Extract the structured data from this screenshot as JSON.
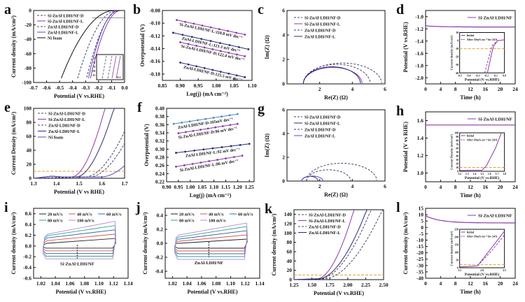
{
  "colors": {
    "purple": "#8b3aa8",
    "navy": "#2a2a7a",
    "slate": "#444466",
    "violet": "#5b46c4",
    "black": "#111111",
    "orange_ref": "#e0a030",
    "cv": [
      "#222222",
      "#d9534f",
      "#2a6fb0",
      "#3aa08a",
      "#b48cd8"
    ]
  },
  "chart_data": [
    {
      "id": "a",
      "panel_label": "a",
      "type": "line",
      "xlabel": "Potential (V vs.RHE)",
      "ylabel": "Current density (mA/cm²)",
      "xlim": [
        -0.7,
        0.0
      ],
      "ylim": [
        -100,
        0
      ],
      "xticks": [
        "-0.7",
        "-0.6",
        "-0.5",
        "-0.4",
        "-0.3",
        "-0.2",
        "-0.1",
        "0.0"
      ],
      "yticks": [
        "-100",
        "-80",
        "-60",
        "-40",
        "-20",
        "0"
      ],
      "legend_position": "top-left",
      "series": [
        {
          "name": "Si-ZnAl-LDH/NF-D",
          "style": "dash",
          "color": "slate",
          "onset": -0.04,
          "x100": -0.3
        },
        {
          "name": "Si-ZnAl-LDH/NF-L",
          "style": "solid",
          "color": "purple",
          "onset": -0.03,
          "x100": -0.27
        },
        {
          "name": "ZnAl-LDH/NF-D",
          "style": "dash",
          "color": "slate",
          "onset": -0.06,
          "x100": -0.37
        },
        {
          "name": "ZnAl-LDH/NF-L",
          "style": "solid",
          "color": "violet",
          "onset": -0.05,
          "x100": -0.285
        },
        {
          "name": "Ni foam",
          "style": "solid",
          "color": "black",
          "onset": -0.08,
          "x100": -0.5
        }
      ],
      "inset": {
        "yticks": [
          "-7",
          "-8",
          "-9",
          "-10",
          "-11"
        ],
        "xtick": "-0.1"
      }
    },
    {
      "id": "b",
      "panel_label": "b",
      "type": "line",
      "xlabel": "Log(j) (mA cm⁻²)",
      "ylabel": "Overpotential (V)",
      "xlim": [
        0.85,
        1.1
      ],
      "ylim": [
        -0.19,
        -0.08
      ],
      "xticks": [
        "0.85",
        "0.90",
        "0.95",
        "1.00",
        "1.05",
        "1.10"
      ],
      "yticks": [
        "-0.18",
        "-0.16",
        "-0.14",
        "-0.12",
        "-0.10",
        "-0.08"
      ],
      "series": [
        {
          "name": "Si-ZnAl-LDH/NF-L:118.8 mV dec⁻¹",
          "color": "purple",
          "x": [
            0.89,
            1.08
          ],
          "y": [
            -0.095,
            -0.118
          ]
        },
        {
          "name": "ZnAl-LDH/NF-L:121.3 mV dec⁻¹",
          "color": "navy",
          "x": [
            0.88,
            1.09
          ],
          "y": [
            -0.115,
            -0.141
          ]
        },
        {
          "name": "Si-ZnAl-LDH/NF-D:122.4 mV dec⁻¹",
          "color": "purple",
          "x": [
            0.9,
            1.08
          ],
          "y": [
            -0.13,
            -0.152
          ]
        },
        {
          "name": "ZnAl-LDH/NF-D:125.5 mV dec⁻¹",
          "color": "navy",
          "x": [
            0.9,
            1.08
          ],
          "y": [
            -0.162,
            -0.185
          ]
        }
      ]
    },
    {
      "id": "c",
      "panel_label": "c",
      "type": "line",
      "xlabel": "Re(Z) (Ω)",
      "ylabel": "Im(Z) (Ω)",
      "xlim": [
        0,
        6
      ],
      "ylim": [
        0,
        6
      ],
      "xticks": [
        "2",
        "4",
        "6"
      ],
      "yticks": [
        "0",
        "2",
        "4",
        "6"
      ],
      "legend_position": "top-left",
      "series": [
        {
          "name": "Si-ZnAl-LDH/NF-D",
          "style": "dash",
          "color": "slate",
          "r0": 1.0,
          "r1": 5.1,
          "peak": 1.6
        },
        {
          "name": "Si-ZnAl-LDH/NF-L",
          "style": "solid",
          "color": "purple",
          "r0": 1.0,
          "r1": 4.6,
          "peak": 1.35
        },
        {
          "name": "ZnAl-LDH/NF-D",
          "style": "dash",
          "color": "slate",
          "r0": 1.0,
          "r1": 5.8,
          "peak": 1.7
        },
        {
          "name": "ZnAl-LDH/NF-L",
          "style": "solid",
          "color": "navy",
          "r0": 1.0,
          "r1": 4.5,
          "peak": 1.4
        }
      ]
    },
    {
      "id": "d",
      "panel_label": "d",
      "type": "line",
      "xlabel": "Time (h)",
      "ylabel": "Potential (V vs.RHE)",
      "xlim": [
        0,
        24
      ],
      "ylim": [
        -2.1,
        -0.9
      ],
      "xticks": [
        "0",
        "4",
        "8",
        "12",
        "16",
        "20",
        "24"
      ],
      "yticks": [
        "-2.0",
        "-1.8",
        "-1.6",
        "-1.4",
        "-1.2",
        "-1.0"
      ],
      "series": [
        {
          "name": "Si-ZnAl-LDH/NF",
          "color": "purple",
          "start": -1.15,
          "end": -1.17
        }
      ],
      "inset": {
        "xlabel": "Potential (V vs.RHE)",
        "ylabel": "Current density (mA/cm²)",
        "xticks": [
          "-0.5",
          "-0.4",
          "-0.3",
          "-0.2",
          "-0.1",
          "0.0"
        ],
        "yticks": [
          "-40",
          "-30",
          "-20",
          "-10",
          "0",
          "10"
        ],
        "legend": [
          "Initial",
          "After 10mA cm⁻² for 24 h"
        ]
      }
    },
    {
      "id": "e",
      "panel_label": "e",
      "type": "line",
      "xlabel": "Potential (V vs RHE)",
      "ylabel": "Current Density (mA/cm²)",
      "xlim": [
        1.3,
        1.7
      ],
      "ylim": [
        0,
        100
      ],
      "xticks": [
        "1.3",
        "1.4",
        "1.5",
        "1.6",
        "1.7"
      ],
      "yticks": [
        "0",
        "20",
        "40",
        "60",
        "80",
        "100"
      ],
      "legend_position": "top-left",
      "ref_line": 10,
      "series": [
        {
          "name": "Si-ZnAl-LDH/NF-D",
          "style": "dash",
          "color": "slate",
          "onset": 1.53,
          "end": 65
        },
        {
          "name": "Si-ZnAl-LDH/NF-L",
          "style": "solid",
          "color": "purple",
          "onset": 1.47,
          "end": 100,
          "x100": 1.615
        },
        {
          "name": "ZnAl-LDH/NF-D",
          "style": "dash",
          "color": "slate",
          "onset": 1.55,
          "end": 48
        },
        {
          "name": "ZnAl-LDH/NF-L",
          "style": "solid",
          "color": "navy",
          "onset": 1.49,
          "end": 100,
          "x100": 1.655
        },
        {
          "name": "Ni foam",
          "style": "solid",
          "color": "violet",
          "onset": 1.6,
          "end": 16
        }
      ]
    },
    {
      "id": "f",
      "panel_label": "f",
      "type": "line",
      "xlabel": "Log(j) (mA cm⁻²)",
      "ylabel": "Overpotential (V)",
      "xlim": [
        0.9,
        1.27
      ],
      "ylim": [
        0.22,
        0.4
      ],
      "xticks": [
        "0.90",
        "0.95",
        "1.00",
        "1.05",
        "1.10",
        "1.15",
        "1.20",
        "1.25"
      ],
      "yticks": [
        "0.22",
        "0.24",
        "0.26",
        "0.28",
        "0.30",
        "0.32",
        "0.34",
        "0.36",
        "0.38",
        "0.40"
      ],
      "series": [
        {
          "name": "ZnAl-LDH/NF-D:105mV dec⁻¹",
          "color": "#4a8ab8",
          "x": [
            0.93,
            1.2
          ],
          "y": [
            0.362,
            0.386
          ]
        },
        {
          "name": "Si-ZnAl-LDH/NF-D:96 mV dec⁻¹",
          "color": "purple",
          "x": [
            0.95,
            1.2
          ],
          "y": [
            0.339,
            0.362
          ]
        },
        {
          "name": "ZnAl-LDH/NF-L:92 mV dec⁻¹",
          "color": "navy",
          "x": [
            0.94,
            1.25
          ],
          "y": [
            0.291,
            0.313
          ]
        },
        {
          "name": "Si-ZnAl-LDH/NF-L:86 mV dec⁻¹",
          "color": "purple",
          "x": [
            0.94,
            1.22
          ],
          "y": [
            0.257,
            0.284
          ]
        }
      ]
    },
    {
      "id": "g",
      "panel_label": "g",
      "type": "line",
      "xlabel": "Re(Z) (Ω)",
      "ylabel": "Im(Z) (Ω)",
      "xlim": [
        0,
        6
      ],
      "ylim": [
        0,
        6
      ],
      "xticks": [
        "2",
        "4",
        "6"
      ],
      "yticks": [
        "0",
        "2",
        "4",
        "6"
      ],
      "legend_position": "top-left",
      "series": [
        {
          "name": "Si-ZnAl-LDH/NF-D",
          "style": "dash",
          "color": "slate",
          "r0": 1.2,
          "r1": 3.9,
          "peak": 0.95
        },
        {
          "name": "Si-ZnAl-LDH/NF-L",
          "style": "solid",
          "color": "navy",
          "r0": 0.9,
          "r1": 1.9,
          "peak": 0.4
        },
        {
          "name": "ZnAl-LDH/NF-D",
          "style": "dash",
          "color": "slate",
          "r0": 1.2,
          "r1": 5.5,
          "peak": 1.5
        },
        {
          "name": "ZnAl-LDH/NF-L",
          "style": "solid",
          "color": "violet",
          "r0": 0.9,
          "r1": 2.2,
          "peak": 0.42
        }
      ]
    },
    {
      "id": "h",
      "panel_label": "h",
      "type": "line",
      "xlabel": "Time (h)",
      "ylabel": "Potential (V vs RHE)",
      "xlim": [
        0,
        24
      ],
      "ylim": [
        0.9,
        1.7
      ],
      "xticks": [
        "0",
        "4",
        "8",
        "12",
        "16",
        "20",
        "24"
      ],
      "yticks": [
        "1.0",
        "1.2",
        "1.4",
        "1.6"
      ],
      "series": [
        {
          "name": "Si-ZnAl-LDH/NF",
          "color": "purple",
          "start": 1.55,
          "end": 1.55
        }
      ],
      "inset": {
        "xlabel": "Potential (V vs.RHE)",
        "ylabel": "Current Density (mA/cm²)",
        "xticks": [
          "1.2",
          "1.3",
          "1.4",
          "1.5",
          "1.6",
          "1.7",
          "1.8"
        ],
        "yticks": [
          "0",
          "10",
          "20",
          "30",
          "40",
          "50",
          "60",
          "70",
          "80",
          "90",
          "100"
        ],
        "legend": [
          "Initial",
          "After 10mA cm⁻² for 24 h"
        ]
      }
    },
    {
      "id": "i",
      "panel_label": "i",
      "type": "line",
      "xlabel": "Potential (V vs.RHE)",
      "ylabel": "Current density (mA/cm²)",
      "xlim": [
        1.01,
        1.14
      ],
      "ylim": [
        -0.6,
        0.7
      ],
      "xticks": [
        "1.02",
        "1.04",
        "1.06",
        "1.08",
        "1.10",
        "1.12",
        "1.14"
      ],
      "yticks": [
        "-0.6",
        "-0.4",
        "-0.2",
        "0.0",
        "0.2",
        "0.4",
        "0.6"
      ],
      "annotation": "Si-ZnAl-LDH/NF",
      "series": [
        {
          "name": "20 mV/s",
          "top": [
            0.05,
            0.14
          ],
          "bot": -0.04
        },
        {
          "name": "40 mV/s",
          "top": [
            0.1,
            0.22
          ],
          "bot": -0.09
        },
        {
          "name": "60 mV/s",
          "top": [
            0.15,
            0.3
          ],
          "bot": -0.14
        },
        {
          "name": "80 mV/s",
          "top": [
            0.19,
            0.38
          ],
          "bot": -0.19
        },
        {
          "name": "100 mV/s",
          "top": [
            0.22,
            0.46
          ],
          "bot": -0.24
        }
      ]
    },
    {
      "id": "j",
      "panel_label": "j",
      "type": "line",
      "xlabel": "Potential (V vs.RHE)",
      "ylabel": "Current density (mA/cm²)",
      "xlim": [
        1.01,
        1.14
      ],
      "ylim": [
        -0.5,
        0.5
      ],
      "xticks": [
        "1.02",
        "1.04",
        "1.06",
        "1.08",
        "1.10",
        "1.12",
        "1.14"
      ],
      "yticks": [
        "-0.4",
        "-0.2",
        "0.0",
        "0.2",
        "0.4"
      ],
      "annotation": "ZnAl-LDH/NF",
      "series": [
        {
          "name": "20 mV/s",
          "top": [
            0.0,
            0.06
          ],
          "bot": -0.07
        },
        {
          "name": "40 mV/s",
          "top": [
            0.03,
            0.12
          ],
          "bot": -0.11
        },
        {
          "name": "60 mV/s",
          "top": [
            0.06,
            0.18
          ],
          "bot": -0.15
        },
        {
          "name": "80 mV/s",
          "top": [
            0.09,
            0.24
          ],
          "bot": -0.19
        },
        {
          "name": "100 mV/s",
          "top": [
            0.12,
            0.29
          ],
          "bot": -0.23
        }
      ]
    },
    {
      "id": "k",
      "panel_label": "k",
      "type": "line",
      "xlabel": "Potential (V vs.RHE)",
      "ylabel": "Current density (mA/cm²)",
      "xlim": [
        1.25,
        2.5
      ],
      "ylim": [
        0,
        150
      ],
      "xticks": [
        "1.25",
        "1.50",
        "1.75",
        "2.00",
        "2.25",
        "2.50"
      ],
      "yticks": [
        "0",
        "20",
        "40",
        "60",
        "80",
        "100",
        "120",
        "140"
      ],
      "legend_position": "top-left",
      "ref_line": 10,
      "series": [
        {
          "name": "Si-ZnAl-LDH/NF-D",
          "style": "dash",
          "color": "slate",
          "onset": 1.62,
          "x150": 2.33
        },
        {
          "name": "Si-ZnAl-LDH/NF-L",
          "style": "solid",
          "color": "purple",
          "onset": 1.58,
          "x150": 2.09
        },
        {
          "name": "ZnAl-LDH/NF-D",
          "style": "dash",
          "color": "slate",
          "onset": 1.68,
          "x150": 2.49
        },
        {
          "name": "ZnAl-LDH/NF-L",
          "style": "solid",
          "color": "navy",
          "onset": 1.6,
          "x150": 2.27
        }
      ]
    },
    {
      "id": "l",
      "panel_label": "l",
      "type": "line",
      "xlabel": "Time (h)",
      "ylabel": "Current density (mA/cm²)",
      "xlim": [
        0,
        24
      ],
      "ylim": [
        -40,
        15
      ],
      "xticks": [
        "0",
        "4",
        "8",
        "12",
        "16",
        "20",
        "24"
      ],
      "yticks": [
        "-40",
        "-35",
        "-30",
        "-25",
        "-20",
        "-15",
        "-10",
        "-5",
        "0",
        "5",
        "10",
        "15"
      ],
      "series": [
        {
          "name": "Si-ZnAl-LDH/NF",
          "color": "purple",
          "start": 9,
          "end": 3.5
        }
      ],
      "inset": {
        "xlabel": "Potential (V vs.RHE)",
        "ylabel": "Current density (mA/cm²)",
        "xticks": [
          "1.5",
          "2.0",
          "2.5"
        ],
        "yticks": [
          "0",
          "50",
          "100",
          "150",
          "200",
          "250"
        ],
        "legend": [
          "Initial",
          "After 10mA cm⁻² for 24 h"
        ]
      }
    }
  ]
}
